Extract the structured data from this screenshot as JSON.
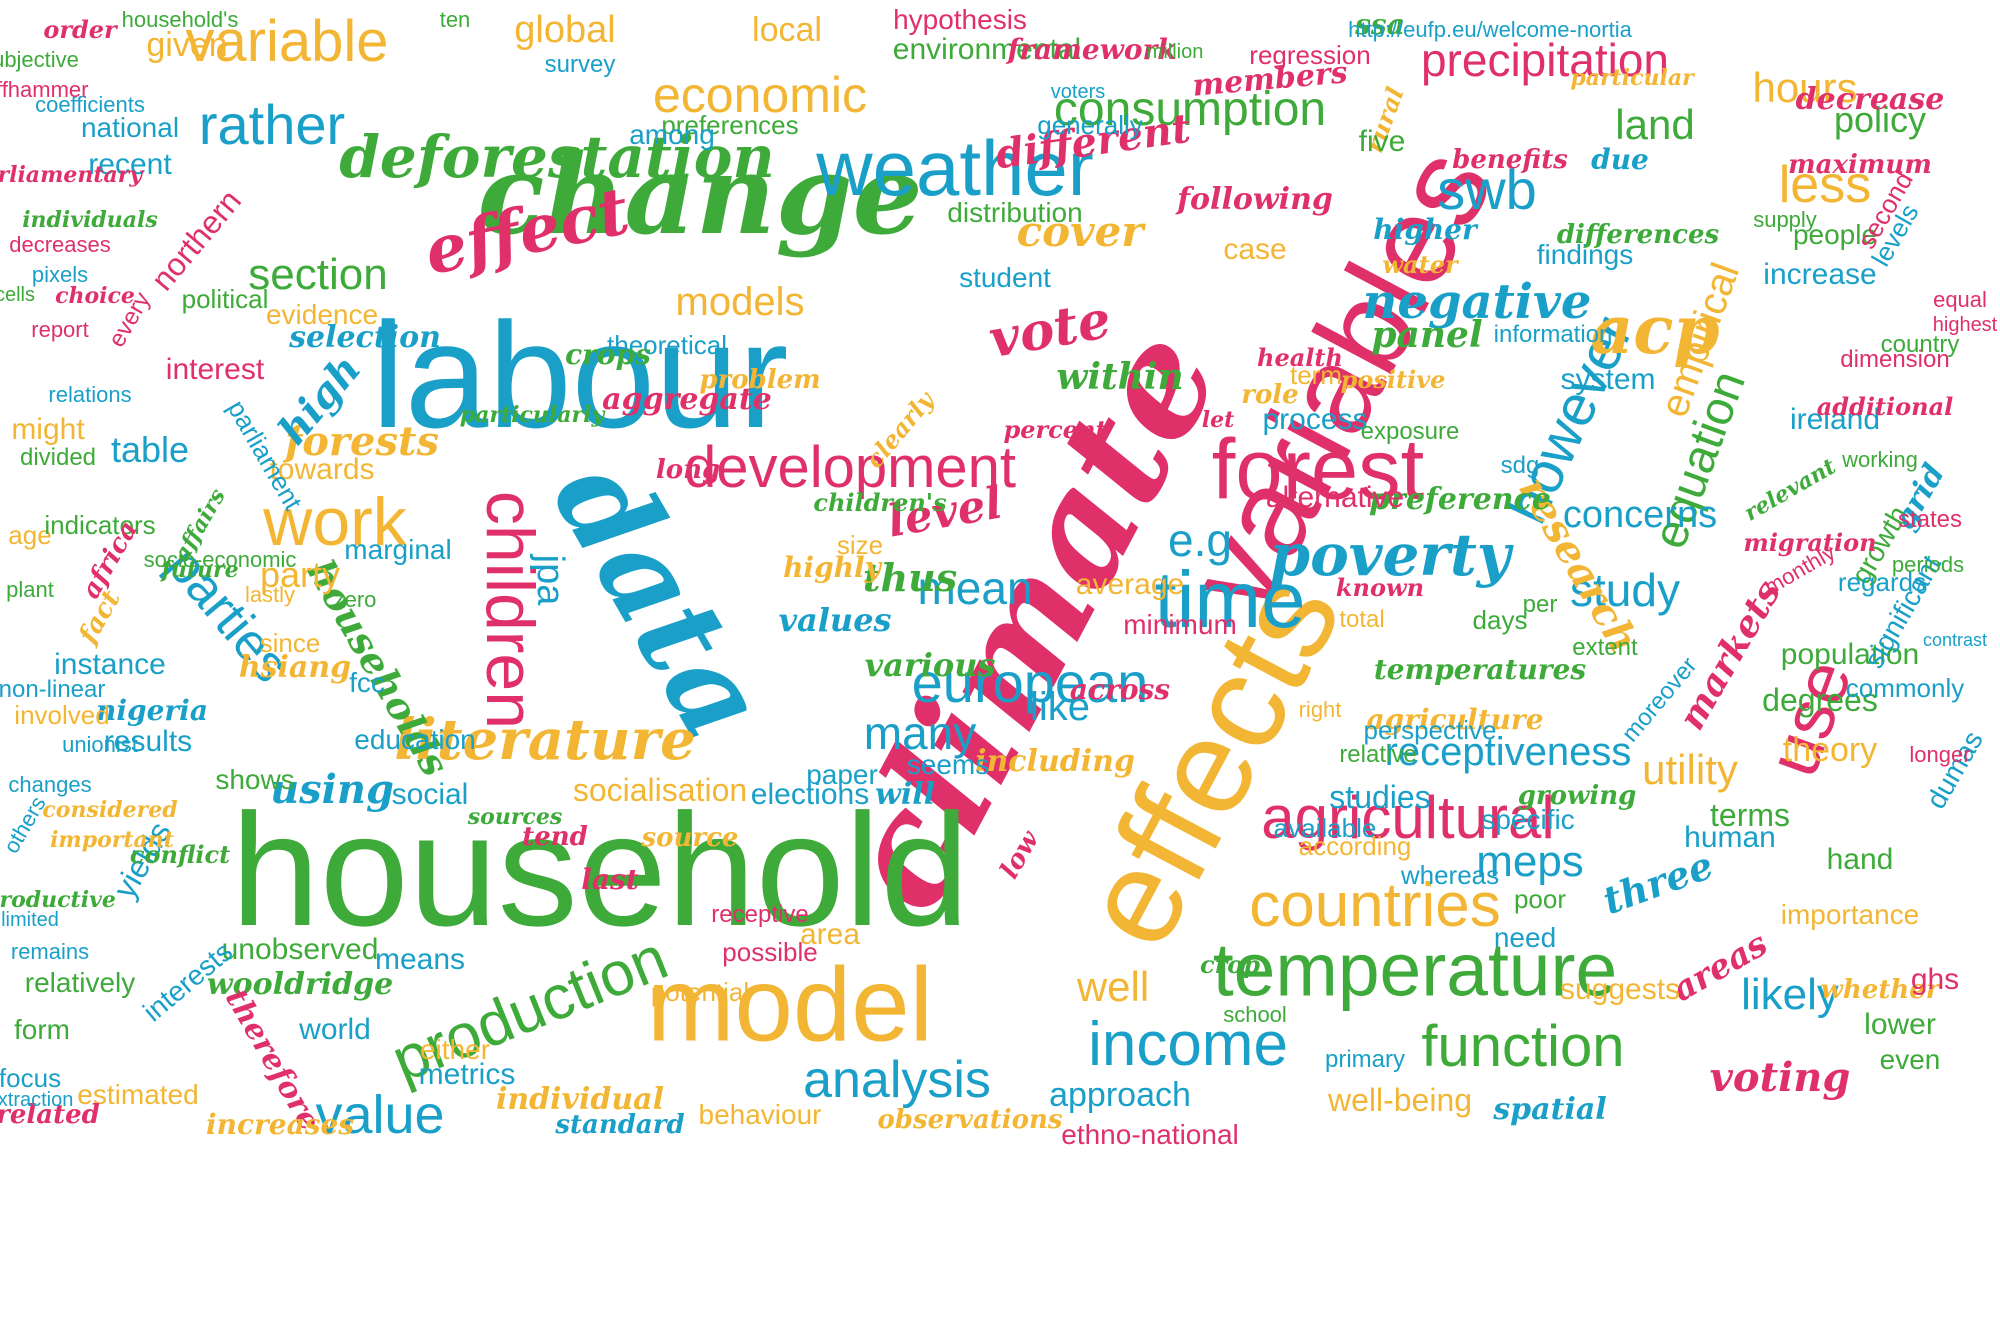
{
  "palette": {
    "teal": "#1aa0c8",
    "green": "#3daa3a",
    "pink": "#e0306a",
    "yellow": "#f3b634"
  },
  "words": [
    {
      "text": "climate",
      "color": "pink"
    },
    {
      "text": "variables",
      "color": "pink"
    },
    {
      "text": "effects",
      "color": "yellow"
    },
    {
      "text": "data",
      "color": "teal"
    },
    {
      "text": "labour",
      "color": "teal"
    },
    {
      "text": "household",
      "color": "green"
    },
    {
      "text": "change",
      "color": "green"
    },
    {
      "text": "model",
      "color": "yellow"
    },
    {
      "text": "temperature",
      "color": "green"
    },
    {
      "text": "effect",
      "color": "pink"
    },
    {
      "text": "deforestation",
      "color": "green"
    },
    {
      "text": "weather",
      "color": "teal"
    },
    {
      "text": "forest",
      "color": "pink"
    },
    {
      "text": "time",
      "color": "teal"
    },
    {
      "text": "income",
      "color": "teal"
    },
    {
      "text": "agricultural",
      "color": "pink"
    },
    {
      "text": "countries",
      "color": "yellow"
    },
    {
      "text": "development",
      "color": "pink"
    },
    {
      "text": "production",
      "color": "green"
    },
    {
      "text": "consumption",
      "color": "green"
    },
    {
      "text": "function",
      "color": "green"
    },
    {
      "text": "analysis",
      "color": "teal"
    },
    {
      "text": "use",
      "color": "pink"
    },
    {
      "text": "children",
      "color": "pink"
    },
    {
      "text": "work",
      "color": "yellow"
    },
    {
      "text": "poverty",
      "color": "teal"
    },
    {
      "text": "literature",
      "color": "yellow"
    },
    {
      "text": "european",
      "color": "teal"
    },
    {
      "text": "value",
      "color": "teal"
    },
    {
      "text": "however",
      "color": "teal"
    },
    {
      "text": "swb",
      "color": "teal"
    },
    {
      "text": "variable",
      "color": "yellow"
    },
    {
      "text": "rather",
      "color": "teal"
    },
    {
      "text": "economic",
      "color": "yellow"
    },
    {
      "text": "negative",
      "color": "teal"
    },
    {
      "text": "acp",
      "color": "yellow"
    },
    {
      "text": "less",
      "color": "yellow"
    },
    {
      "text": "precipitation",
      "color": "pink"
    },
    {
      "text": "section",
      "color": "green"
    },
    {
      "text": "models",
      "color": "yellow"
    },
    {
      "text": "parties",
      "color": "teal"
    },
    {
      "text": "vote",
      "color": "pink"
    },
    {
      "text": "cover",
      "color": "yellow"
    },
    {
      "text": "different",
      "color": "pink"
    },
    {
      "text": "e.g",
      "color": "teal"
    },
    {
      "text": "mean",
      "color": "teal"
    },
    {
      "text": "study",
      "color": "teal"
    },
    {
      "text": "equation",
      "color": "green"
    },
    {
      "text": "receptiveness",
      "color": "teal"
    },
    {
      "text": "meps",
      "color": "teal"
    },
    {
      "text": "likely",
      "color": "teal"
    },
    {
      "text": "well",
      "color": "yellow"
    },
    {
      "text": "voting",
      "color": "pink"
    },
    {
      "text": "forests",
      "color": "yellow"
    },
    {
      "text": "households",
      "color": "green"
    },
    {
      "text": "using",
      "color": "teal"
    },
    {
      "text": "research",
      "color": "yellow"
    },
    {
      "text": "markets",
      "color": "pink"
    },
    {
      "text": "areas",
      "color": "pink"
    },
    {
      "text": "three",
      "color": "teal"
    },
    {
      "text": "jpa",
      "color": "teal"
    },
    {
      "text": "level",
      "color": "pink"
    },
    {
      "text": "within",
      "color": "green"
    },
    {
      "text": "like",
      "color": "teal"
    },
    {
      "text": "thus",
      "color": "green"
    },
    {
      "text": "panel",
      "color": "green"
    },
    {
      "text": "average",
      "color": "yellow"
    },
    {
      "text": "concerns",
      "color": "teal"
    },
    {
      "text": "empirical",
      "color": "yellow"
    },
    {
      "text": "environmental",
      "color": "green"
    },
    {
      "text": "hours",
      "color": "yellow"
    },
    {
      "text": "global",
      "color": "yellow"
    },
    {
      "text": "local",
      "color": "yellow"
    },
    {
      "text": "given",
      "color": "yellow"
    },
    {
      "text": "land",
      "color": "green"
    },
    {
      "text": "policy",
      "color": "green"
    },
    {
      "text": "members",
      "color": "pink"
    },
    {
      "text": "following",
      "color": "pink"
    },
    {
      "text": "increase",
      "color": "teal"
    },
    {
      "text": "people",
      "color": "green"
    },
    {
      "text": "case",
      "color": "yellow"
    },
    {
      "text": "maximum",
      "color": "pink"
    },
    {
      "text": "decrease",
      "color": "pink"
    },
    {
      "text": "selection",
      "color": "teal"
    },
    {
      "text": "interest",
      "color": "pink"
    },
    {
      "text": "northern",
      "color": "pink"
    },
    {
      "text": "recent",
      "color": "teal"
    },
    {
      "text": "national",
      "color": "teal"
    },
    {
      "text": "table",
      "color": "teal"
    },
    {
      "text": "high",
      "color": "teal"
    },
    {
      "text": "towards",
      "color": "yellow"
    },
    {
      "text": "party",
      "color": "yellow"
    },
    {
      "text": "instance",
      "color": "teal"
    },
    {
      "text": "results",
      "color": "teal"
    },
    {
      "text": "shows",
      "color": "green"
    },
    {
      "text": "many",
      "color": "teal"
    },
    {
      "text": "paper",
      "color": "teal"
    },
    {
      "text": "education",
      "color": "teal"
    },
    {
      "text": "social",
      "color": "teal"
    },
    {
      "text": "minimum",
      "color": "pink"
    },
    {
      "text": "values",
      "color": "teal"
    },
    {
      "text": "across",
      "color": "pink"
    },
    {
      "text": "various",
      "color": "green"
    },
    {
      "text": "including",
      "color": "yellow"
    },
    {
      "text": "socialisation",
      "color": "yellow"
    },
    {
      "text": "elections",
      "color": "teal"
    },
    {
      "text": "studies",
      "color": "teal"
    },
    {
      "text": "means",
      "color": "teal"
    },
    {
      "text": "world",
      "color": "teal"
    },
    {
      "text": "metrics",
      "color": "teal"
    },
    {
      "text": "unobserved",
      "color": "green"
    },
    {
      "text": "wooldridge",
      "color": "green"
    },
    {
      "text": "individual",
      "color": "yellow"
    },
    {
      "text": "behaviour",
      "color": "yellow"
    },
    {
      "text": "approach",
      "color": "teal"
    },
    {
      "text": "well-being",
      "color": "yellow"
    },
    {
      "text": "ethno-national",
      "color": "pink"
    },
    {
      "text": "utility",
      "color": "yellow"
    },
    {
      "text": "terms",
      "color": "green"
    },
    {
      "text": "human",
      "color": "teal"
    },
    {
      "text": "hand",
      "color": "green"
    },
    {
      "text": "lower",
      "color": "green"
    },
    {
      "text": "even",
      "color": "green"
    },
    {
      "text": "theory",
      "color": "yellow"
    },
    {
      "text": "degrees",
      "color": "green"
    },
    {
      "text": "population",
      "color": "green"
    },
    {
      "text": "temperatures",
      "color": "green"
    },
    {
      "text": "agriculture",
      "color": "yellow"
    },
    {
      "text": "preference",
      "color": "green"
    },
    {
      "text": "alternative",
      "color": "pink"
    },
    {
      "text": "process",
      "color": "teal"
    },
    {
      "text": "system",
      "color": "teal"
    },
    {
      "text": "ireland",
      "color": "teal"
    },
    {
      "text": "findings",
      "color": "teal"
    },
    {
      "text": "distribution",
      "color": "green"
    },
    {
      "text": "generally",
      "color": "teal"
    },
    {
      "text": "regression",
      "color": "pink"
    },
    {
      "text": "preferences",
      "color": "green"
    },
    {
      "text": "among",
      "color": "teal"
    },
    {
      "text": "student",
      "color": "teal"
    },
    {
      "text": "evidence",
      "color": "yellow"
    },
    {
      "text": "theoretical",
      "color": "teal"
    },
    {
      "text": "crops",
      "color": "green"
    },
    {
      "text": "aggregate",
      "color": "pink"
    },
    {
      "text": "nigeria",
      "color": "teal"
    },
    {
      "text": "hsiang",
      "color": "yellow"
    },
    {
      "text": "fcc",
      "color": "teal"
    },
    {
      "text": "yields",
      "color": "teal"
    },
    {
      "text": "interests",
      "color": "teal"
    },
    {
      "text": "relatively",
      "color": "green"
    },
    {
      "text": "form",
      "color": "green"
    },
    {
      "text": "focus",
      "color": "teal"
    },
    {
      "text": "therefore",
      "color": "pink"
    },
    {
      "text": "estimated",
      "color": "yellow"
    },
    {
      "text": "increases",
      "color": "yellow"
    },
    {
      "text": "related",
      "color": "pink"
    },
    {
      "text": "either",
      "color": "yellow"
    },
    {
      "text": "standard",
      "color": "teal"
    },
    {
      "text": "observations",
      "color": "yellow"
    },
    {
      "text": "spatial",
      "color": "teal"
    },
    {
      "text": "suggests",
      "color": "yellow"
    },
    {
      "text": "whether",
      "color": "yellow"
    },
    {
      "text": "ghs",
      "color": "pink"
    },
    {
      "text": "importance",
      "color": "yellow"
    },
    {
      "text": "according",
      "color": "yellow"
    },
    {
      "text": "available",
      "color": "teal"
    },
    {
      "text": "whereas",
      "color": "teal"
    },
    {
      "text": "poor",
      "color": "green"
    },
    {
      "text": "need",
      "color": "teal"
    },
    {
      "text": "possible",
      "color": "pink"
    },
    {
      "text": "potential",
      "color": "yellow"
    },
    {
      "text": "area",
      "color": "yellow"
    },
    {
      "text": "dumas",
      "color": "teal"
    },
    {
      "text": "longer",
      "color": "pink"
    },
    {
      "text": "commonly",
      "color": "teal"
    },
    {
      "text": "significant",
      "color": "teal"
    },
    {
      "text": "growth",
      "color": "green"
    },
    {
      "text": "migration",
      "color": "pink"
    },
    {
      "text": "grid",
      "color": "teal"
    },
    {
      "text": "monthly",
      "color": "pink"
    },
    {
      "text": "relevant",
      "color": "green"
    },
    {
      "text": "states",
      "color": "pink"
    },
    {
      "text": "working",
      "color": "green"
    },
    {
      "text": "additional",
      "color": "pink"
    },
    {
      "text": "dimension",
      "color": "pink"
    },
    {
      "text": "country",
      "color": "green"
    },
    {
      "text": "equal",
      "color": "pink"
    },
    {
      "text": "highest",
      "color": "pink"
    },
    {
      "text": "levels",
      "color": "teal"
    },
    {
      "text": "second",
      "color": "pink"
    },
    {
      "text": "supply",
      "color": "green"
    },
    {
      "text": "exposure",
      "color": "green"
    },
    {
      "text": "sdg",
      "color": "teal"
    },
    {
      "text": "information",
      "color": "teal"
    },
    {
      "text": "water",
      "color": "yellow"
    },
    {
      "text": "higher",
      "color": "teal"
    },
    {
      "text": "benefits",
      "color": "pink"
    },
    {
      "text": "particular",
      "color": "yellow"
    },
    {
      "text": "differences",
      "color": "green"
    },
    {
      "text": "due",
      "color": "teal"
    },
    {
      "text": "framework",
      "color": "pink"
    },
    {
      "text": "hypothesis",
      "color": "pink"
    },
    {
      "text": "ssa",
      "color": "green"
    },
    {
      "text": "http://eufp.eu/welcome-nortia",
      "color": "teal"
    },
    {
      "text": "million",
      "color": "green"
    },
    {
      "text": "rural",
      "color": "yellow"
    },
    {
      "text": "survey",
      "color": "teal"
    },
    {
      "text": "household's",
      "color": "green"
    },
    {
      "text": "order",
      "color": "pink"
    },
    {
      "text": "subjective",
      "color": "green"
    },
    {
      "text": "coefficients",
      "color": "teal"
    },
    {
      "text": "auffhammer",
      "color": "pink"
    },
    {
      "text": "parliamentary",
      "color": "pink"
    },
    {
      "text": "individuals",
      "color": "green"
    },
    {
      "text": "decreases",
      "color": "pink"
    },
    {
      "text": "pixels",
      "color": "teal"
    },
    {
      "text": "cells",
      "color": "green"
    },
    {
      "text": "choice",
      "color": "pink"
    },
    {
      "text": "every",
      "color": "pink"
    },
    {
      "text": "report",
      "color": "pink"
    },
    {
      "text": "might",
      "color": "yellow"
    },
    {
      "text": "divided",
      "color": "green"
    },
    {
      "text": "relations",
      "color": "teal"
    },
    {
      "text": "age",
      "color": "yellow"
    },
    {
      "text": "indicators",
      "color": "green"
    },
    {
      "text": "plant",
      "color": "green"
    },
    {
      "text": "africa",
      "color": "pink"
    },
    {
      "text": "affairs",
      "color": "green"
    },
    {
      "text": "fact",
      "color": "yellow"
    },
    {
      "text": "future",
      "color": "green"
    },
    {
      "text": "lastly",
      "color": "yellow"
    },
    {
      "text": "socio-economic",
      "color": "green"
    },
    {
      "text": "since",
      "color": "yellow"
    },
    {
      "text": "non-linear",
      "color": "teal"
    },
    {
      "text": "involved",
      "color": "yellow"
    },
    {
      "text": "unionist",
      "color": "teal"
    },
    {
      "text": "changes",
      "color": "teal"
    },
    {
      "text": "considered",
      "color": "yellow"
    },
    {
      "text": "others",
      "color": "teal"
    },
    {
      "text": "important",
      "color": "yellow"
    },
    {
      "text": "conflict",
      "color": "green"
    },
    {
      "text": "productive",
      "color": "green"
    },
    {
      "text": "limited",
      "color": "teal"
    },
    {
      "text": "remains",
      "color": "teal"
    },
    {
      "text": "extraction",
      "color": "teal"
    },
    {
      "text": "political",
      "color": "green"
    },
    {
      "text": "parliament",
      "color": "teal"
    },
    {
      "text": "marginal",
      "color": "teal"
    },
    {
      "text": "zero",
      "color": "green"
    },
    {
      "text": "sources",
      "color": "green"
    },
    {
      "text": "school",
      "color": "green"
    },
    {
      "text": "crop",
      "color": "green"
    },
    {
      "text": "primary",
      "color": "teal"
    },
    {
      "text": "receptive",
      "color": "pink"
    },
    {
      "text": "last",
      "color": "pink"
    },
    {
      "text": "tend",
      "color": "pink"
    },
    {
      "text": "low",
      "color": "pink"
    },
    {
      "text": "will",
      "color": "teal"
    },
    {
      "text": "seems",
      "color": "teal"
    },
    {
      "text": "growing",
      "color": "green"
    },
    {
      "text": "specific",
      "color": "teal"
    },
    {
      "text": "relative",
      "color": "green"
    },
    {
      "text": "perspective",
      "color": "teal"
    },
    {
      "text": "right",
      "color": "yellow"
    },
    {
      "text": "known",
      "color": "pink"
    },
    {
      "text": "total",
      "color": "yellow"
    },
    {
      "text": "days",
      "color": "green"
    },
    {
      "text": "per",
      "color": "green"
    },
    {
      "text": "extent",
      "color": "green"
    },
    {
      "text": "moreover",
      "color": "teal"
    },
    {
      "text": "regards",
      "color": "teal"
    },
    {
      "text": "periods",
      "color": "green"
    },
    {
      "text": "contrast",
      "color": "teal"
    },
    {
      "text": "term",
      "color": "yellow"
    },
    {
      "text": "health",
      "color": "pink"
    },
    {
      "text": "positive",
      "color": "yellow"
    },
    {
      "text": "role",
      "color": "yellow"
    },
    {
      "text": "let",
      "color": "pink"
    },
    {
      "text": "long",
      "color": "pink"
    },
    {
      "text": "size",
      "color": "yellow"
    },
    {
      "text": "particularly",
      "color": "green"
    },
    {
      "text": "problem",
      "color": "yellow"
    },
    {
      "text": "clearly",
      "color": "yellow"
    },
    {
      "text": "percent",
      "color": "pink"
    },
    {
      "text": "children's",
      "color": "green"
    },
    {
      "text": "highly",
      "color": "yellow"
    },
    {
      "text": "source",
      "color": "yellow"
    },
    {
      "text": "five",
      "color": "green"
    },
    {
      "text": "ten",
      "color": "green"
    },
    {
      "text": "voters",
      "color": "teal"
    }
  ]
}
